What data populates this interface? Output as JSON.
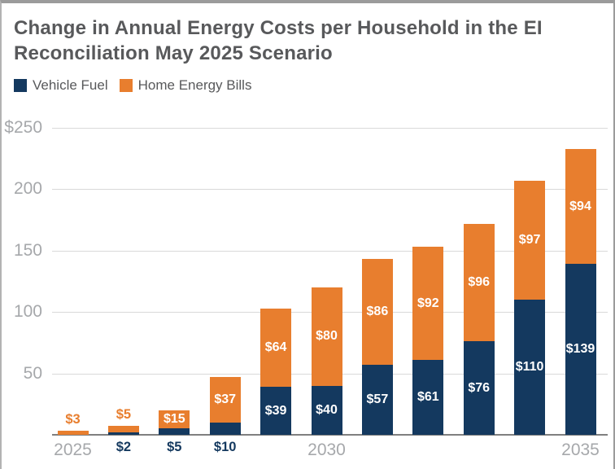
{
  "title": "Change in Annual Energy Costs per Household in the EI Reconciliation May 2025 Scenario",
  "legend": [
    {
      "label": "Vehicle Fuel",
      "color": "#14395F"
    },
    {
      "label": "Home Energy Bills",
      "color": "#E87E2E"
    }
  ],
  "chart_data": {
    "type": "bar",
    "stacked": true,
    "title": "Change in Annual Energy Costs per Household in the EI Reconciliation May 2025 Scenario",
    "categories": [
      "2025",
      "2026",
      "2027",
      "2028",
      "2029",
      "2030",
      "2031",
      "2032",
      "2033",
      "2034",
      "2035"
    ],
    "series": [
      {
        "name": "Vehicle Fuel",
        "color": "#14395F",
        "values": [
          0,
          2,
          5,
          10,
          39,
          40,
          57,
          61,
          76,
          110,
          139
        ],
        "labels": [
          "",
          "$2",
          "$5",
          "$10",
          "$39",
          "$40",
          "$57",
          "$61",
          "$76",
          "$110",
          "$139"
        ]
      },
      {
        "name": "Home Energy Bills",
        "color": "#E87E2E",
        "values": [
          3,
          5,
          15,
          37,
          64,
          80,
          86,
          92,
          96,
          97,
          94
        ],
        "labels": [
          "$3",
          "$5",
          "$15",
          "$37",
          "$64",
          "$80",
          "$86",
          "$92",
          "$96",
          "$97",
          "$94"
        ]
      }
    ],
    "y_ticks": [
      {
        "value": 50,
        "label": "50"
      },
      {
        "value": 100,
        "label": "100"
      },
      {
        "value": 150,
        "label": "150"
      },
      {
        "value": 200,
        "label": "200"
      },
      {
        "value": 250,
        "label": "$250"
      }
    ],
    "x_ticks": [
      {
        "index": 0,
        "label": "2025"
      },
      {
        "index": 5,
        "label": "2030"
      },
      {
        "index": 10,
        "label": "2035"
      }
    ],
    "ylim": [
      0,
      250
    ],
    "grid": true,
    "legend_position": "top-left",
    "value_prefix": "$"
  },
  "colors": {
    "title_text": "#58595B",
    "axis_text": "#A6A8AB",
    "gridline": "#D9D9D9",
    "axis_line": "#7F7F7F",
    "background": "#FFFFFF"
  }
}
